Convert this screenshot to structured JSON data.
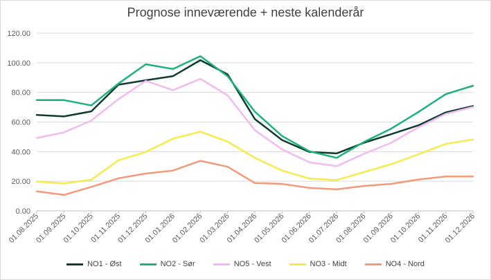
{
  "chart_data": {
    "type": "line",
    "title": "Prognose inneværende + neste kalenderår",
    "xlabel": "",
    "ylabel": "",
    "ylim": [
      0,
      120
    ],
    "yticks": [
      "0.00",
      "20.00",
      "40.00",
      "60.00",
      "80.00",
      "100.00",
      "120.00"
    ],
    "grid": true,
    "legend": "bottom",
    "categories": [
      "01.08.2025",
      "01.09.2025",
      "01.10.2025",
      "01.11.2025",
      "01.12.2025",
      "01.01.2026",
      "01.02.2026",
      "01.03.2026",
      "01.04.2026",
      "01.05.2026",
      "01.06.2026",
      "01.07.2026",
      "01.08.2026",
      "01.09.2026",
      "01.10.2026",
      "01.11.2026",
      "01.12.2026"
    ],
    "series": [
      {
        "name": "NO1 - Øst",
        "color": "#0e3b2e",
        "values": [
          64.8,
          63.8,
          67.2,
          85.2,
          88.2,
          91.0,
          101.8,
          92.2,
          62.0,
          47.8,
          39.8,
          38.8,
          46.0,
          51.8,
          57.8,
          66.5,
          70.8
        ]
      },
      {
        "name": "NO2 - Sør",
        "color": "#1ab27a",
        "values": [
          74.8,
          74.8,
          71.2,
          86.0,
          99.0,
          95.8,
          104.5,
          91.0,
          67.0,
          50.5,
          40.2,
          35.8,
          46.5,
          55.5,
          66.8,
          78.8,
          84.5
        ]
      },
      {
        "name": "NO5 - Vest",
        "color": "#f2baf0",
        "values": [
          49.2,
          53.0,
          61.0,
          75.5,
          87.8,
          81.5,
          89.2,
          78.0,
          54.5,
          41.5,
          32.8,
          30.2,
          38.5,
          46.0,
          56.5,
          65.5,
          70.2
        ]
      },
      {
        "name": "NO3 - Midt",
        "color": "#f7eb4a",
        "values": [
          19.8,
          18.5,
          21.0,
          34.2,
          39.8,
          48.8,
          53.5,
          46.8,
          35.8,
          27.2,
          21.8,
          20.8,
          26.2,
          31.5,
          38.2,
          45.2,
          48.2
        ]
      },
      {
        "name": "NO4 - Nord",
        "color": "#f4997a",
        "values": [
          13.2,
          10.8,
          16.2,
          22.0,
          25.2,
          27.2,
          33.8,
          29.8,
          18.8,
          18.2,
          15.5,
          14.5,
          16.8,
          18.2,
          21.2,
          23.2,
          23.2
        ]
      }
    ]
  }
}
